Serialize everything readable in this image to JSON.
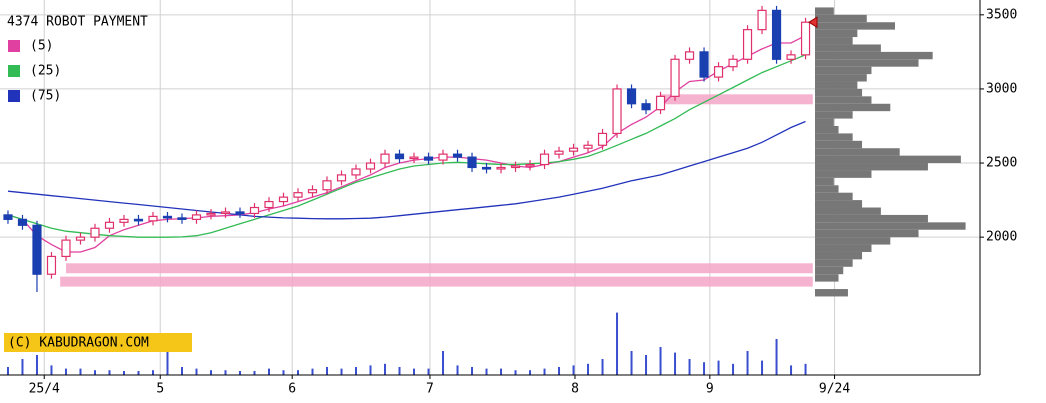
{
  "chart_data": {
    "type": "candlestick",
    "title": "4374 ROBOT PAYMENT",
    "copyright": "(C) KABUDRAGON.COM",
    "xlim": [
      -0.55,
      67.03
    ],
    "xticks": [
      {
        "value": 2.5,
        "label": "25/4"
      },
      {
        "value": 10.5,
        "label": "5"
      },
      {
        "value": 19.6,
        "label": "6"
      },
      {
        "value": 29.1,
        "label": "7"
      },
      {
        "value": 39.1,
        "label": "8"
      },
      {
        "value": 48.4,
        "label": "9"
      },
      {
        "value": 57,
        "label": "9/24"
      }
    ],
    "ylim": [
      1070,
      3600
    ],
    "yticks": [
      2000,
      2500,
      3000,
      3500
    ],
    "grid": true,
    "up_color": "#e0306a",
    "down_color": "#1a3fb0",
    "open": [
      2150,
      2120,
      2080,
      1750,
      1870,
      1980,
      2000,
      2060,
      2100,
      2120,
      2110,
      2140,
      2130,
      2120,
      2150,
      2160,
      2170,
      2160,
      2200,
      2240,
      2270,
      2300,
      2320,
      2380,
      2420,
      2460,
      2500,
      2560,
      2530,
      2540,
      2520,
      2560,
      2540,
      2470,
      2460,
      2470,
      2480,
      2490,
      2560,
      2580,
      2600,
      2620,
      2700,
      3000,
      2900,
      2860,
      2950,
      3200,
      3250,
      3080,
      3150,
      3200,
      3400,
      3530,
      3200,
      3230
    ],
    "high": [
      2180,
      2150,
      2110,
      1900,
      2010,
      2030,
      2090,
      2130,
      2150,
      2150,
      2170,
      2170,
      2160,
      2180,
      2190,
      2200,
      2200,
      2230,
      2270,
      2300,
      2330,
      2350,
      2410,
      2450,
      2490,
      2530,
      2590,
      2590,
      2570,
      2570,
      2590,
      2590,
      2570,
      2500,
      2500,
      2510,
      2520,
      2590,
      2610,
      2630,
      2650,
      2730,
      3030,
      3030,
      2930,
      2980,
      3230,
      3280,
      3280,
      3180,
      3230,
      3430,
      3560,
      3560,
      3260,
      3480
    ],
    "low": [
      2090,
      2050,
      1630,
      1720,
      1840,
      1950,
      1970,
      2030,
      2070,
      2080,
      2080,
      2100,
      2090,
      2090,
      2120,
      2130,
      2130,
      2130,
      2170,
      2210,
      2240,
      2270,
      2290,
      2350,
      2390,
      2430,
      2470,
      2500,
      2500,
      2490,
      2490,
      2510,
      2440,
      2430,
      2430,
      2440,
      2450,
      2460,
      2530,
      2550,
      2570,
      2590,
      2670,
      2870,
      2830,
      2830,
      2920,
      3170,
      3050,
      3050,
      3120,
      3170,
      3370,
      3170,
      3170,
      3200
    ],
    "close": [
      2120,
      2080,
      1750,
      1870,
      1980,
      2000,
      2060,
      2100,
      2120,
      2110,
      2140,
      2130,
      2120,
      2150,
      2160,
      2170,
      2160,
      2200,
      2240,
      2270,
      2300,
      2320,
      2380,
      2420,
      2460,
      2500,
      2560,
      2530,
      2540,
      2520,
      2560,
      2540,
      2470,
      2460,
      2470,
      2480,
      2490,
      2560,
      2580,
      2600,
      2620,
      2700,
      3000,
      2900,
      2860,
      2950,
      3200,
      3250,
      3080,
      3150,
      3200,
      3400,
      3530,
      3200,
      3230,
      3450
    ],
    "series": [
      {
        "name": "(5)",
        "color": "#e040a0",
        "values": [
          2150,
          2120,
          2010,
          1950,
          1900,
          1900,
          1930,
          2010,
          2050,
          2080,
          2110,
          2120,
          2125,
          2130,
          2140,
          2145,
          2150,
          2165,
          2190,
          2210,
          2240,
          2270,
          2300,
          2340,
          2380,
          2420,
          2470,
          2500,
          2520,
          2530,
          2540,
          2540,
          2530,
          2520,
          2500,
          2480,
          2470,
          2490,
          2510,
          2540,
          2570,
          2610,
          2700,
          2760,
          2810,
          2880,
          2980,
          3050,
          3060,
          3120,
          3170,
          3220,
          3270,
          3310,
          3310,
          3360
        ]
      },
      {
        "name": "(25)",
        "color": "#33bb55",
        "values": [
          2150,
          2120,
          2090,
          2060,
          2040,
          2030,
          2020,
          2010,
          2005,
          2000,
          2000,
          2000,
          2002,
          2010,
          2030,
          2060,
          2090,
          2120,
          2150,
          2180,
          2210,
          2250,
          2290,
          2330,
          2370,
          2400,
          2430,
          2460,
          2480,
          2490,
          2500,
          2505,
          2500,
          2495,
          2490,
          2490,
          2495,
          2500,
          2510,
          2525,
          2545,
          2580,
          2620,
          2660,
          2700,
          2750,
          2800,
          2860,
          2910,
          2960,
          3010,
          3060,
          3110,
          3150,
          3190,
          3230
        ]
      },
      {
        "name": "(75)",
        "color": "#2233bb",
        "values": [
          2310,
          2300,
          2290,
          2280,
          2270,
          2260,
          2250,
          2240,
          2230,
          2220,
          2210,
          2200,
          2190,
          2180,
          2170,
          2160,
          2150,
          2140,
          2135,
          2130,
          2128,
          2125,
          2124,
          2124,
          2126,
          2128,
          2135,
          2145,
          2155,
          2165,
          2175,
          2185,
          2195,
          2205,
          2215,
          2225,
          2240,
          2255,
          2270,
          2290,
          2310,
          2330,
          2355,
          2380,
          2400,
          2420,
          2450,
          2480,
          2510,
          2540,
          2570,
          2600,
          2640,
          2690,
          2740,
          2780
        ]
      }
    ],
    "volume": {
      "color": "#3a4fcf",
      "ylim": [
        0,
        100
      ],
      "values": [
        10,
        20,
        25,
        12,
        8,
        8,
        6,
        6,
        5,
        5,
        6,
        30,
        10,
        8,
        6,
        6,
        5,
        5,
        8,
        6,
        6,
        8,
        10,
        8,
        10,
        12,
        14,
        10,
        8,
        8,
        30,
        12,
        10,
        8,
        8,
        6,
        6,
        8,
        10,
        12,
        14,
        20,
        78,
        30,
        25,
        35,
        28,
        20,
        16,
        18,
        14,
        30,
        18,
        45,
        12,
        14
      ]
    },
    "volume_profile": {
      "color": "#777777",
      "xlim": [
        0,
        170
      ],
      "levels": [
        1625,
        1725,
        1775,
        1825,
        1875,
        1925,
        1975,
        2025,
        2075,
        2125,
        2175,
        2225,
        2275,
        2325,
        2375,
        2425,
        2475,
        2525,
        2575,
        2625,
        2675,
        2725,
        2775,
        2825,
        2875,
        2925,
        2975,
        3025,
        3075,
        3125,
        3175,
        3225,
        3275,
        3325,
        3375,
        3425,
        3475,
        3525
      ],
      "values": [
        35,
        25,
        30,
        40,
        50,
        60,
        80,
        110,
        160,
        120,
        70,
        50,
        40,
        25,
        20,
        60,
        120,
        155,
        90,
        50,
        40,
        25,
        20,
        40,
        80,
        60,
        50,
        45,
        55,
        60,
        110,
        125,
        70,
        40,
        45,
        85,
        55,
        20
      ]
    },
    "bands": {
      "color": "#f4a6c8",
      "items": [
        {
          "x": [
            45,
            55.5
          ],
          "y": 2930
        },
        {
          "x": [
            4,
            55.5
          ],
          "y": 1790
        },
        {
          "x": [
            3.6,
            55.5
          ],
          "y": 1700
        }
      ]
    }
  }
}
